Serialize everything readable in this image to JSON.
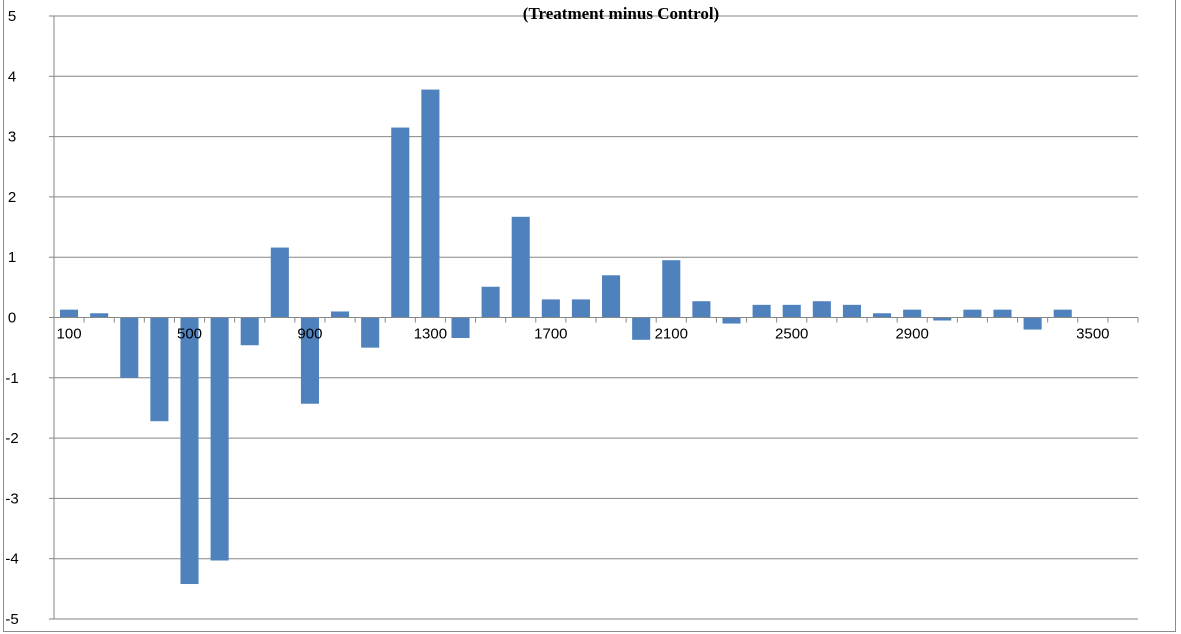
{
  "chart_data": {
    "type": "bar",
    "title": "(Treatment minus Control)",
    "xlabel": "",
    "ylabel": "",
    "ylim": [
      -5,
      5
    ],
    "y_ticks": [
      5,
      4,
      3,
      2,
      1,
      0,
      -1,
      -2,
      -3,
      -4,
      -5
    ],
    "grid": true,
    "bar_color": "#4f81bd",
    "categories": [
      "100",
      "200",
      "300",
      "400",
      "500",
      "600",
      "700",
      "800",
      "900",
      "1000",
      "1100",
      "1200",
      "1300",
      "1400",
      "1500",
      "1600",
      "1700",
      "1800",
      "1900",
      "2000",
      "2100",
      "2200",
      "2300",
      "2400",
      "2500",
      "2600",
      "2700",
      "2800",
      "2900",
      "3000",
      "3100",
      "3200",
      "3300",
      "3400",
      "3500",
      "3600"
    ],
    "x_tick_labels": [
      "100",
      "500",
      "900",
      "1300",
      "1700",
      "2100",
      "2500",
      "2900",
      "3500"
    ],
    "values": [
      0.13,
      0.07,
      -1.0,
      -1.72,
      -4.42,
      -4.03,
      -0.46,
      1.16,
      -1.43,
      0.1,
      -0.5,
      3.15,
      3.78,
      -0.34,
      0.51,
      1.67,
      0.3,
      0.3,
      0.7,
      -0.37,
      0.95,
      0.27,
      -0.1,
      0.21,
      0.21,
      0.27,
      0.21,
      0.07,
      0.13,
      -0.05,
      0.13,
      0.13,
      -0.2,
      0.13,
      0.0,
      0.0
    ]
  }
}
